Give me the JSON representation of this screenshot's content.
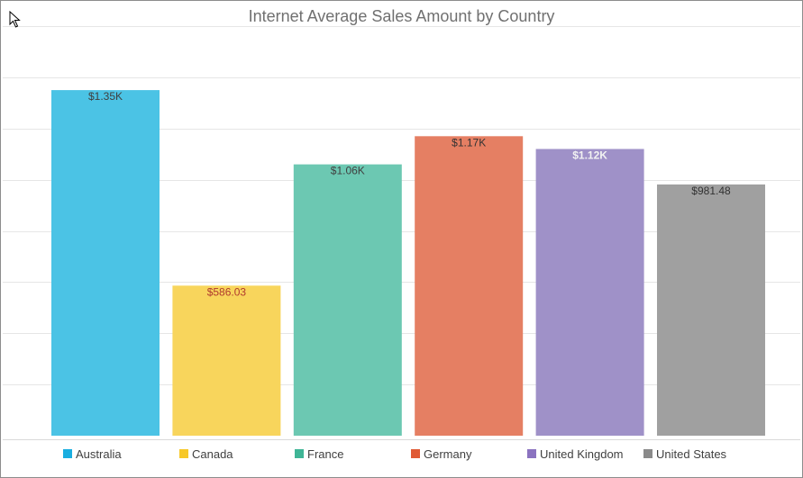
{
  "chart_data": {
    "type": "bar",
    "title": "Internet Average Sales Amount by Country",
    "xlabel": "",
    "ylabel": "",
    "categories": [
      "Australia",
      "Canada",
      "France",
      "Germany",
      "United Kingdom",
      "United States"
    ],
    "values": [
      1350,
      586.03,
      1060,
      1170,
      1120,
      981.48
    ],
    "data_labels": [
      "$1.35K",
      "$586.03",
      "$1.06K",
      "$1.17K",
      "$1.12K",
      "$981.48"
    ],
    "label_colors": [
      "#404040",
      "#b03a2e",
      "#404040",
      "#333333",
      "#f2f2f2",
      "#333333"
    ],
    "colors": [
      "#4bc3e5",
      "#f8d55c",
      "#6cc8b2",
      "#e57f63",
      "#9f91c8",
      "#a0a0a0"
    ],
    "legend_colors": [
      "#1aaee0",
      "#f7c828",
      "#3fb596",
      "#e05a35",
      "#8b73c0",
      "#8a8a8a"
    ],
    "ylim": [
      0,
      1600
    ],
    "grid": true,
    "legend": "bottom"
  }
}
